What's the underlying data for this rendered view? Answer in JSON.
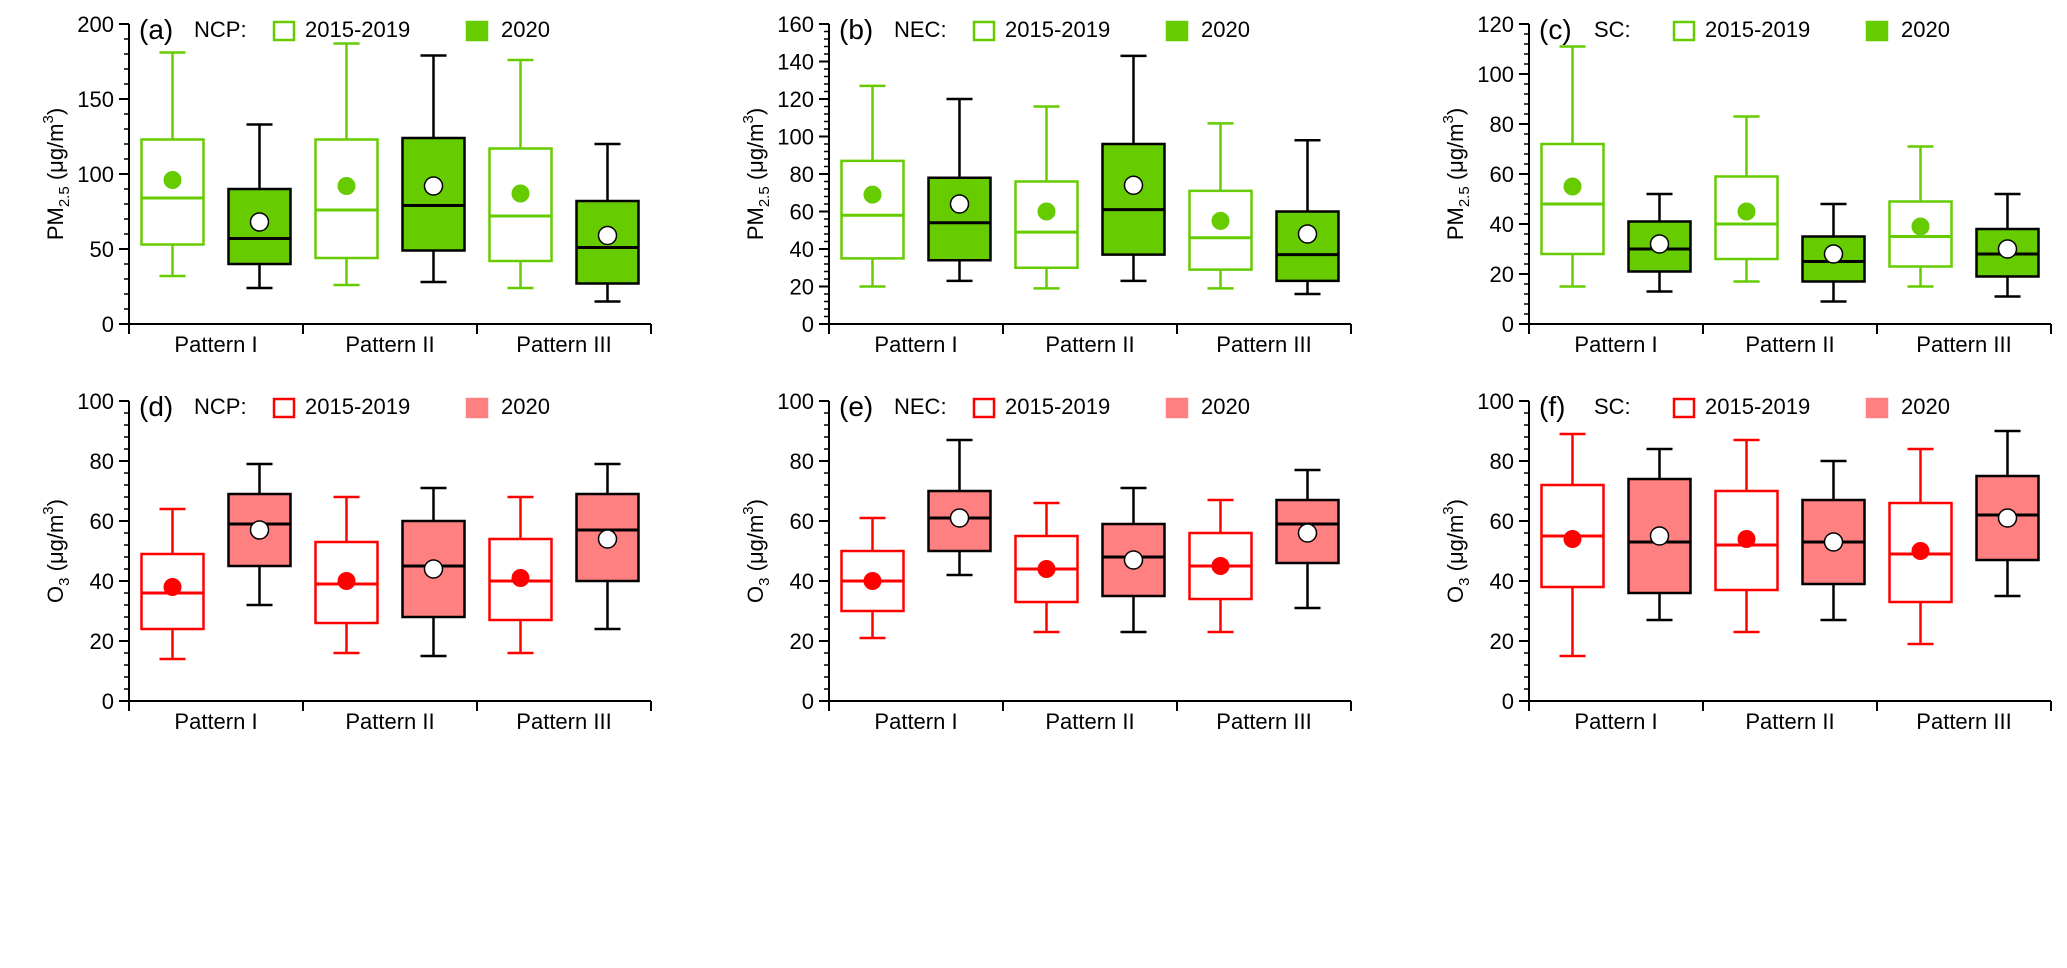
{
  "colors": {
    "pm25_hist": "#66cc00",
    "pm25_2020_fill": "#66cc00",
    "o3_hist": "#ff0000",
    "o3_2020_fill": "#ff8080",
    "dark": "#000000",
    "mean_2020_marker": "#ffffff"
  },
  "chart_data": [
    {
      "panel": "(a)",
      "region": "NCP:",
      "type": "box",
      "pollutant": "pm25",
      "ylabel_main": "PM",
      "ylabel_sub": "2.5",
      "ylabel_unit": " (μg/m",
      "ylabel_sup": "3",
      "ylabel_close": ")",
      "ylim": [
        0,
        200
      ],
      "yticks": [
        "0",
        "50",
        "100",
        "150",
        "200"
      ],
      "categories": [
        "Pattern I",
        "Pattern II",
        "Pattern III"
      ],
      "legend": [
        "2015-2019",
        "2020"
      ],
      "series": [
        {
          "name": "2015-2019",
          "boxes": [
            {
              "min": 32,
              "q1": 53,
              "median": 84,
              "q3": 123,
              "max": 181,
              "mean": 96
            },
            {
              "min": 26,
              "q1": 44,
              "median": 76,
              "q3": 123,
              "max": 187,
              "mean": 92
            },
            {
              "min": 24,
              "q1": 42,
              "median": 72,
              "q3": 117,
              "max": 176,
              "mean": 87
            }
          ]
        },
        {
          "name": "2020",
          "boxes": [
            {
              "min": 24,
              "q1": 40,
              "median": 57,
              "q3": 90,
              "max": 133,
              "mean": 68
            },
            {
              "min": 28,
              "q1": 49,
              "median": 79,
              "q3": 124,
              "max": 179,
              "mean": 92
            },
            {
              "min": 15,
              "q1": 27,
              "median": 51,
              "q3": 82,
              "max": 120,
              "mean": 59
            }
          ]
        }
      ]
    },
    {
      "panel": "(b)",
      "region": "NEC:",
      "type": "box",
      "pollutant": "pm25",
      "ylabel_main": "PM",
      "ylabel_sub": "2.5",
      "ylabel_unit": " (μg/m",
      "ylabel_sup": "3",
      "ylabel_close": ")",
      "ylim": [
        0,
        160
      ],
      "yticks": [
        "0",
        "20",
        "40",
        "60",
        "80",
        "100",
        "120",
        "140",
        "160"
      ],
      "categories": [
        "Pattern I",
        "Pattern II",
        "Pattern III"
      ],
      "legend": [
        "2015-2019",
        "2020"
      ],
      "series": [
        {
          "name": "2015-2019",
          "boxes": [
            {
              "min": 20,
              "q1": 35,
              "median": 58,
              "q3": 87,
              "max": 127,
              "mean": 69
            },
            {
              "min": 19,
              "q1": 30,
              "median": 49,
              "q3": 76,
              "max": 116,
              "mean": 60
            },
            {
              "min": 19,
              "q1": 29,
              "median": 46,
              "q3": 71,
              "max": 107,
              "mean": 55
            }
          ]
        },
        {
          "name": "2020",
          "boxes": [
            {
              "min": 23,
              "q1": 34,
              "median": 54,
              "q3": 78,
              "max": 120,
              "mean": 64
            },
            {
              "min": 23,
              "q1": 37,
              "median": 61,
              "q3": 96,
              "max": 143,
              "mean": 74
            },
            {
              "min": 16,
              "q1": 23,
              "median": 37,
              "q3": 60,
              "max": 98,
              "mean": 48
            }
          ]
        }
      ]
    },
    {
      "panel": "(c)",
      "region": "SC:",
      "type": "box",
      "pollutant": "pm25",
      "ylabel_main": "PM",
      "ylabel_sub": "2.5",
      "ylabel_unit": " (μg/m",
      "ylabel_sup": "3",
      "ylabel_close": ")",
      "ylim": [
        0,
        120
      ],
      "yticks": [
        "0",
        "20",
        "40",
        "60",
        "80",
        "100",
        "120"
      ],
      "categories": [
        "Pattern I",
        "Pattern II",
        "Pattern III"
      ],
      "legend": [
        "2015-2019",
        "2020"
      ],
      "series": [
        {
          "name": "2015-2019",
          "boxes": [
            {
              "min": 15,
              "q1": 28,
              "median": 48,
              "q3": 72,
              "max": 111,
              "mean": 55
            },
            {
              "min": 17,
              "q1": 26,
              "median": 40,
              "q3": 59,
              "max": 83,
              "mean": 45
            },
            {
              "min": 15,
              "q1": 23,
              "median": 35,
              "q3": 49,
              "max": 71,
              "mean": 39
            }
          ]
        },
        {
          "name": "2020",
          "boxes": [
            {
              "min": 13,
              "q1": 21,
              "median": 30,
              "q3": 41,
              "max": 52,
              "mean": 32
            },
            {
              "min": 9,
              "q1": 17,
              "median": 25,
              "q3": 35,
              "max": 48,
              "mean": 28
            },
            {
              "min": 11,
              "q1": 19,
              "median": 28,
              "q3": 38,
              "max": 52,
              "mean": 30
            }
          ]
        }
      ]
    },
    {
      "panel": "(d)",
      "region": "NCP:",
      "type": "box",
      "pollutant": "o3",
      "ylabel_main": "O",
      "ylabel_sub": "3",
      "ylabel_unit": " (μg/m",
      "ylabel_sup": "3",
      "ylabel_close": ")",
      "ylim": [
        0,
        100
      ],
      "yticks": [
        "0",
        "20",
        "40",
        "60",
        "80",
        "100"
      ],
      "categories": [
        "Pattern I",
        "Pattern II",
        "Pattern III"
      ],
      "legend": [
        "2015-2019",
        "2020"
      ],
      "series": [
        {
          "name": "2015-2019",
          "boxes": [
            {
              "min": 14,
              "q1": 24,
              "median": 36,
              "q3": 49,
              "max": 64,
              "mean": 38
            },
            {
              "min": 16,
              "q1": 26,
              "median": 39,
              "q3": 53,
              "max": 68,
              "mean": 40
            },
            {
              "min": 16,
              "q1": 27,
              "median": 40,
              "q3": 54,
              "max": 68,
              "mean": 41
            }
          ]
        },
        {
          "name": "2020",
          "boxes": [
            {
              "min": 32,
              "q1": 45,
              "median": 59,
              "q3": 69,
              "max": 79,
              "mean": 57
            },
            {
              "min": 15,
              "q1": 28,
              "median": 45,
              "q3": 60,
              "max": 71,
              "mean": 44
            },
            {
              "min": 24,
              "q1": 40,
              "median": 57,
              "q3": 69,
              "max": 79,
              "mean": 54
            }
          ]
        }
      ]
    },
    {
      "panel": "(e)",
      "region": "NEC:",
      "type": "box",
      "pollutant": "o3",
      "ylabel_main": "O",
      "ylabel_sub": "3",
      "ylabel_unit": " (μg/m",
      "ylabel_sup": "3",
      "ylabel_close": ")",
      "ylim": [
        0,
        100
      ],
      "yticks": [
        "0",
        "20",
        "40",
        "60",
        "80",
        "100"
      ],
      "categories": [
        "Pattern I",
        "Pattern II",
        "Pattern III"
      ],
      "legend": [
        "2015-2019",
        "2020"
      ],
      "series": [
        {
          "name": "2015-2019",
          "boxes": [
            {
              "min": 21,
              "q1": 30,
              "median": 40,
              "q3": 50,
              "max": 61,
              "mean": 40
            },
            {
              "min": 23,
              "q1": 33,
              "median": 44,
              "q3": 55,
              "max": 66,
              "mean": 44
            },
            {
              "min": 23,
              "q1": 34,
              "median": 45,
              "q3": 56,
              "max": 67,
              "mean": 45
            }
          ]
        },
        {
          "name": "2020",
          "boxes": [
            {
              "min": 42,
              "q1": 50,
              "median": 61,
              "q3": 70,
              "max": 87,
              "mean": 61
            },
            {
              "min": 23,
              "q1": 35,
              "median": 48,
              "q3": 59,
              "max": 71,
              "mean": 47
            },
            {
              "min": 31,
              "q1": 46,
              "median": 59,
              "q3": 67,
              "max": 77,
              "mean": 56
            }
          ]
        }
      ]
    },
    {
      "panel": "(f)",
      "region": "SC:",
      "type": "box",
      "pollutant": "o3",
      "ylabel_main": "O",
      "ylabel_sub": "3",
      "ylabel_unit": " (μg/m",
      "ylabel_sup": "3",
      "ylabel_close": ")",
      "ylim": [
        0,
        100
      ],
      "yticks": [
        "0",
        "20",
        "40",
        "60",
        "80",
        "100"
      ],
      "categories": [
        "Pattern I",
        "Pattern II",
        "Pattern III"
      ],
      "legend": [
        "2015-2019",
        "2020"
      ],
      "series": [
        {
          "name": "2015-2019",
          "boxes": [
            {
              "min": 15,
              "q1": 38,
              "median": 55,
              "q3": 72,
              "max": 89,
              "mean": 54
            },
            {
              "min": 23,
              "q1": 37,
              "median": 52,
              "q3": 70,
              "max": 87,
              "mean": 54
            },
            {
              "min": 19,
              "q1": 33,
              "median": 49,
              "q3": 66,
              "max": 84,
              "mean": 50
            }
          ]
        },
        {
          "name": "2020",
          "boxes": [
            {
              "min": 27,
              "q1": 36,
              "median": 53,
              "q3": 74,
              "max": 84,
              "mean": 55
            },
            {
              "min": 27,
              "q1": 39,
              "median": 53,
              "q3": 67,
              "max": 80,
              "mean": 53
            },
            {
              "min": 35,
              "q1": 47,
              "median": 62,
              "q3": 75,
              "max": 90,
              "mean": 61
            }
          ]
        }
      ]
    }
  ]
}
